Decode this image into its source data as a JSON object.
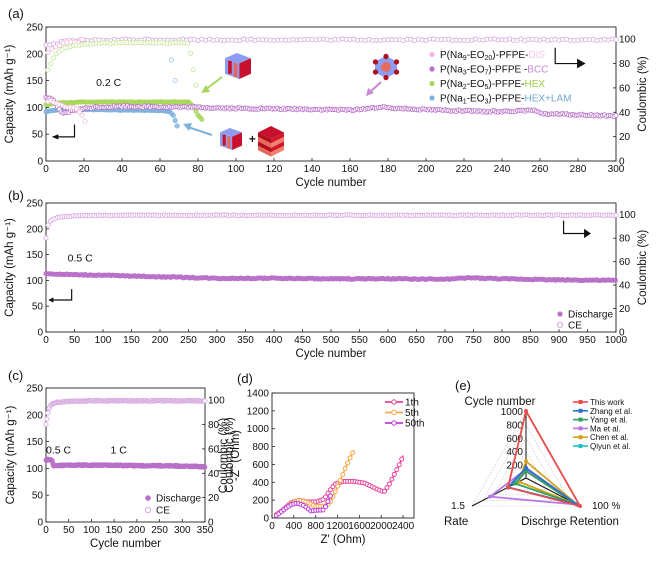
{
  "figure": {
    "panels": [
      "(a)",
      "(b)",
      "(c)",
      "(d)",
      "(e)"
    ]
  },
  "chart_data": [
    {
      "id": "a",
      "panel_label": "(a)",
      "type": "scatter",
      "xlabel": "Cycle number",
      "ylabel": "Capacity (mAh g⁻¹)",
      "y2label": "Coulombic (%)",
      "xlim": [
        0,
        300
      ],
      "ylim": [
        0,
        250
      ],
      "y2lim": [
        0,
        110
      ],
      "xticks": [
        0,
        20,
        40,
        60,
        80,
        100,
        120,
        140,
        160,
        180,
        200,
        220,
        240,
        260,
        280,
        300
      ],
      "yticks": [
        0,
        50,
        100,
        150,
        200,
        250
      ],
      "y2ticks": [
        0,
        20,
        40,
        60,
        80,
        100
      ],
      "annotation": "0.2 C",
      "legend_placement": "top-right",
      "series": [
        {
          "name": "P(Na9-EO20)-PFPE-DIS",
          "legend_prefix": "P(Na",
          "sub1": "9",
          "mid": "-EO",
          "sub2": "20",
          "suffix": ")-PFPE-",
          "phase": "DIS",
          "color": "#f2b8df",
          "phase_color": "#f4c6e6",
          "discharge": {
            "x": [
              1,
              3,
              5,
              8,
              12,
              16,
              18,
              20,
              21
            ],
            "y": [
              110,
              112,
              108,
              104,
              100,
              98,
              90,
              82,
              65
            ]
          },
          "ce": {
            "x": [
              1,
              3,
              10,
              20
            ],
            "y": [
              88,
              93,
              97,
              99
            ]
          }
        },
        {
          "name": "P(Na3-EO7)-PFPE -BCC",
          "legend_prefix": "P(Na",
          "sub1": "3",
          "mid": "-EO",
          "sub2": "7",
          "suffix": ")-PFPE -",
          "phase": "BCC",
          "color": "#b870c8",
          "phase_color": "#c58ad3",
          "discharge": {
            "x": [
              0,
              3,
              6,
              9,
              15,
              25,
              40,
              60,
              80,
              100,
              130,
              160,
              175,
              200,
              230,
              258,
              262,
              300
            ],
            "y": [
              118,
              117,
              100,
              88,
              95,
              100,
              102,
              101,
              100,
              98,
              97,
              95,
              100,
              96,
              92,
              94,
              88,
              84
            ]
          },
          "ce": {
            "x": [
              0,
              10,
              20,
              50,
              100,
              150,
              200,
              250,
              300
            ],
            "y": [
              95,
              98,
              99,
              99.5,
              99.5,
              99.5,
              99.5,
              99.5,
              99.5
            ]
          }
        },
        {
          "name": "P(Na2-EO5)-PFPE-HEX",
          "legend_prefix": "P(Na",
          "sub1": "2",
          "mid": "-EO",
          "sub2": "5",
          "suffix": ")-PFPE-",
          "phase": "HEX",
          "color": "#a8d65a",
          "phase_color": "#9ccf4a",
          "discharge": {
            "x": [
              0,
              5,
              20,
              40,
              60,
              75,
              78,
              80,
              82
            ],
            "y": [
              105,
              108,
              110,
              110,
              110,
              110,
              100,
              85,
              78
            ]
          },
          "ce": {
            "x": [
              1,
              5,
              10,
              20,
              40,
              60,
              75,
              77,
              79
            ],
            "y": [
              75,
              88,
              93,
              96,
              97,
              97,
              97,
              80,
              62
            ]
          }
        },
        {
          "name": "P(Na1-EO3)-PFPE-HEX+LAM",
          "legend_prefix": "P(Na",
          "sub1": "1",
          "mid": "-EO",
          "sub2": "3",
          "suffix": ")-PFPE-",
          "phase": "HEX+LAM",
          "color": "#7fb2dc",
          "phase_color": "#6fa8d8",
          "discharge": {
            "x": [
              0,
              5,
              20,
              40,
              60,
              65,
              67,
              68,
              69
            ],
            "y": [
              92,
              95,
              96,
              95,
              94,
              92,
              85,
              75,
              65
            ]
          },
          "ce": {
            "x": [
              66,
              68
            ],
            "y": [
              83,
              66
            ]
          }
        }
      ]
    },
    {
      "id": "b",
      "panel_label": "(b)",
      "type": "scatter",
      "xlabel": "Cycle number",
      "ylabel": "Capacity (mAh g⁻¹)",
      "y2label": "Coulombic (%)",
      "xlim": [
        0,
        1000
      ],
      "ylim": [
        0,
        250
      ],
      "y2lim": [
        0,
        110
      ],
      "xticks": [
        0,
        50,
        100,
        150,
        200,
        250,
        300,
        350,
        400,
        450,
        500,
        550,
        600,
        650,
        700,
        750,
        800,
        850,
        900,
        950,
        1000
      ],
      "yticks": [
        0,
        50,
        100,
        150,
        200,
        250
      ],
      "y2ticks": [
        0,
        20,
        40,
        60,
        80,
        100
      ],
      "annotation": "0.5 C",
      "legend_placement": "bottom-right",
      "legend": [
        "Discharge",
        "CE"
      ],
      "series": [
        {
          "name": "Discharge",
          "color": "#b870c8",
          "x": [
            0,
            50,
            100,
            200,
            300,
            400,
            500,
            600,
            700,
            745,
            800,
            900,
            1000
          ],
          "y": [
            113,
            111,
            110,
            107,
            104,
            104,
            103,
            103,
            102,
            105,
            103,
            101,
            100
          ]
        },
        {
          "name": "CE",
          "color": "#d7a7e0",
          "x": [
            0,
            5,
            20,
            50,
            100,
            1000
          ],
          "y": [
            80,
            94,
            98,
            99,
            99.5,
            99.5
          ]
        }
      ]
    },
    {
      "id": "c",
      "panel_label": "(c)",
      "type": "scatter",
      "xlabel": "Cycle number",
      "ylabel": "Capacity (mAh g⁻¹)",
      "y2label": "Coulombic (%)",
      "xlim": [
        0,
        350
      ],
      "ylim": [
        0,
        250
      ],
      "y2lim": [
        0,
        110
      ],
      "xticks": [
        0,
        50,
        100,
        150,
        200,
        250,
        300,
        350
      ],
      "yticks": [
        0,
        50,
        100,
        150,
        200,
        250
      ],
      "y2ticks": [
        0,
        20,
        40,
        60,
        80,
        100
      ],
      "annotations": [
        "0.5 C",
        "1 C"
      ],
      "legend_placement": "bottom-right",
      "legend": [
        "Discharge",
        "CE"
      ],
      "series": [
        {
          "name": "Discharge",
          "color": "#b870c8",
          "x": [
            0,
            5,
            10,
            14,
            16,
            50,
            100,
            150,
            200,
            250,
            300,
            350
          ],
          "y": [
            115,
            117,
            116,
            115,
            105,
            106,
            106,
            106,
            105,
            105,
            104,
            103
          ]
        },
        {
          "name": "CE",
          "color": "#d7a7e0",
          "x": [
            0,
            5,
            10,
            20,
            50,
            100,
            350
          ],
          "y": [
            80,
            92,
            96,
            98,
            99,
            99.5,
            99.5
          ]
        }
      ]
    },
    {
      "id": "d",
      "panel_label": "(d)",
      "type": "line",
      "xlabel": "Z' (Ohm)",
      "ylabel": "-Z'' (Ohm)",
      "ylabel_overlay": "Coulombic (%)",
      "xlim": [
        0,
        2600
      ],
      "ylim": [
        0,
        1400
      ],
      "xticks": [
        0,
        400,
        800,
        1200,
        1600,
        2000,
        2400
      ],
      "yticks": [
        0,
        200,
        400,
        600,
        800,
        1000,
        1200,
        1400
      ],
      "legend_placement": "top-right",
      "series": [
        {
          "name": "1th",
          "color": "#e8449a",
          "x": [
            80,
            200,
            350,
            500,
            650,
            800,
            950,
            1050,
            1150,
            1300,
            1500,
            1700,
            1900,
            2050,
            2150,
            2250,
            2350,
            2400
          ],
          "y": [
            40,
            90,
            170,
            200,
            180,
            180,
            210,
            300,
            380,
            410,
            410,
            390,
            330,
            290,
            380,
            500,
            620,
            700
          ]
        },
        {
          "name": "5th",
          "color": "#f5a94a",
          "x": [
            80,
            200,
            350,
            500,
            650,
            800,
            950,
            1050,
            1150,
            1250,
            1350,
            1450,
            1500
          ],
          "y": [
            40,
            80,
            160,
            200,
            175,
            130,
            130,
            160,
            280,
            420,
            570,
            700,
            760
          ]
        },
        {
          "name": "50th",
          "color": "#c13adb",
          "x": [
            80,
            150,
            250,
            350,
            450,
            550,
            650,
            700,
            800,
            950,
            1000,
            1050,
            1080
          ],
          "y": [
            30,
            60,
            110,
            150,
            165,
            150,
            110,
            80,
            85,
            90,
            150,
            220,
            260
          ]
        }
      ]
    },
    {
      "id": "e",
      "panel_label": "(e)",
      "type": "radar",
      "axes": [
        {
          "label": "Cycle number",
          "ticks": [
            200,
            400,
            600,
            800,
            1000
          ],
          "max": 1000
        },
        {
          "label": "Dischrge Retention",
          "max_label": "100 %",
          "max": 100
        },
        {
          "label": "Rate",
          "max_label": "1.5",
          "max": 1.5
        }
      ],
      "legend_placement": "top-right",
      "series": [
        {
          "name": "This work",
          "color": "#e84c4c",
          "marker": "square",
          "values": [
            1000,
            100,
            0.5
          ]
        },
        {
          "name": "Zhang et al.",
          "color": "#2f6fcf",
          "marker": "circle",
          "values": [
            150,
            95,
            0.5
          ]
        },
        {
          "name": "Yang et al.",
          "color": "#2fa060",
          "marker": "triangle-up",
          "values": [
            100,
            95,
            0.3
          ]
        },
        {
          "name": "Ma et al.",
          "color": "#b878e8",
          "marker": "triangle-down",
          "values": [
            130,
            95,
            1.0
          ]
        },
        {
          "name": "Chen et al.",
          "color": "#d6a21a",
          "marker": "diamond",
          "values": [
            250,
            95,
            0.2
          ]
        },
        {
          "name": "Qiyun et al.",
          "color": "#22c0c8",
          "marker": "triangle-left",
          "values": [
            120,
            95,
            0.5
          ]
        }
      ]
    }
  ]
}
